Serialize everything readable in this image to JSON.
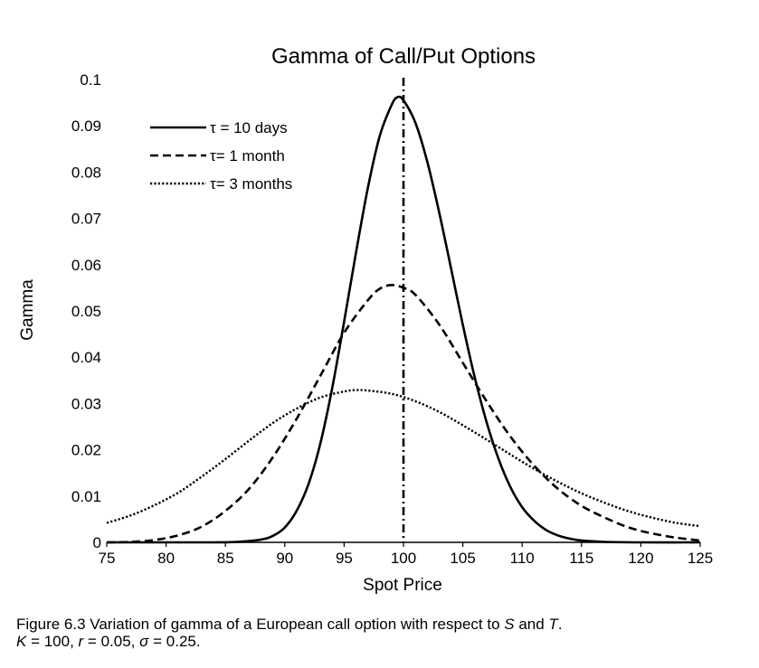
{
  "chart_data": {
    "type": "line",
    "title": "Gamma of Call/Put Options",
    "xlabel": "Spot Price",
    "ylabel": "Gamma",
    "xlim": [
      75,
      125
    ],
    "ylim": [
      0,
      0.1
    ],
    "xticks": [
      "75",
      "80",
      "85",
      "90",
      "95",
      "100",
      "105",
      "110",
      "115",
      "120",
      "125"
    ],
    "yticks": [
      "0",
      "0.01",
      "0.02",
      "0.03",
      "0.04",
      "0.05",
      "0.06",
      "0.07",
      "0.08",
      "0.09",
      "0.1"
    ],
    "grid": false,
    "legend_position": "top-left",
    "strike_line": {
      "x": 100,
      "style": "dash-dot"
    },
    "series": [
      {
        "name": "τ = 10 days",
        "style": "solid",
        "x": [
          75,
          80,
          84,
          86,
          88,
          89,
          90,
          91,
          92,
          93,
          94,
          95,
          96,
          97,
          98,
          99,
          99.5,
          100,
          101,
          102,
          103,
          104,
          105,
          106,
          107,
          108,
          109,
          110,
          111,
          112,
          113,
          114,
          115,
          117,
          120,
          125
        ],
        "y": [
          0,
          0,
          0,
          0.0001,
          0.0006,
          0.0014,
          0.0032,
          0.0068,
          0.0126,
          0.0214,
          0.0334,
          0.0477,
          0.0626,
          0.0766,
          0.0878,
          0.0945,
          0.0962,
          0.0955,
          0.0907,
          0.0823,
          0.0714,
          0.0593,
          0.047,
          0.0357,
          0.026,
          0.0181,
          0.012,
          0.0076,
          0.0047,
          0.0027,
          0.0015,
          0.0008,
          0.0004,
          0.0001,
          0,
          0
        ]
      },
      {
        "name": "τ= 1 month",
        "style": "dashed",
        "x": [
          75,
          77,
          79,
          81,
          83,
          85,
          87,
          89,
          91,
          93,
          95,
          97,
          98,
          99,
          100,
          101,
          103,
          105,
          107,
          109,
          111,
          113,
          115,
          117,
          119,
          121,
          123,
          125
        ],
        "y": [
          0,
          0.0001,
          0.0005,
          0.0015,
          0.0034,
          0.0068,
          0.0116,
          0.0184,
          0.0267,
          0.036,
          0.0453,
          0.0523,
          0.0548,
          0.0556,
          0.055,
          0.0535,
          0.0471,
          0.0388,
          0.0305,
          0.0229,
          0.0166,
          0.0116,
          0.0079,
          0.0053,
          0.0032,
          0.0019,
          0.001,
          0.0004
        ]
      },
      {
        "name": "τ= 3 months",
        "style": "dotted",
        "x": [
          75,
          77,
          79,
          81,
          83,
          85,
          87,
          89,
          91,
          93,
          95,
          96,
          97,
          99,
          101,
          103,
          105,
          107,
          109,
          111,
          113,
          115,
          117,
          119,
          121,
          123,
          125
        ],
        "y": [
          0.0042,
          0.0058,
          0.008,
          0.0107,
          0.0142,
          0.018,
          0.022,
          0.0258,
          0.0289,
          0.0313,
          0.0326,
          0.0329,
          0.0328,
          0.0321,
          0.0305,
          0.0282,
          0.0253,
          0.0222,
          0.019,
          0.0159,
          0.0131,
          0.0106,
          0.0085,
          0.0067,
          0.0053,
          0.0042,
          0.0035
        ]
      }
    ]
  },
  "caption": {
    "line1_a": "Figure 6.3 Variation of gamma of a European call option with respect to ",
    "line1_s": "S",
    "line1_b": " and ",
    "line1_t": "T",
    "line1_c": ".",
    "line2_k": "K",
    "line2_a": " = 100, ",
    "line2_r": "r",
    "line2_b": " = 0.05, ",
    "line2_sigma": "σ",
    "line2_c": " = 0.25."
  }
}
